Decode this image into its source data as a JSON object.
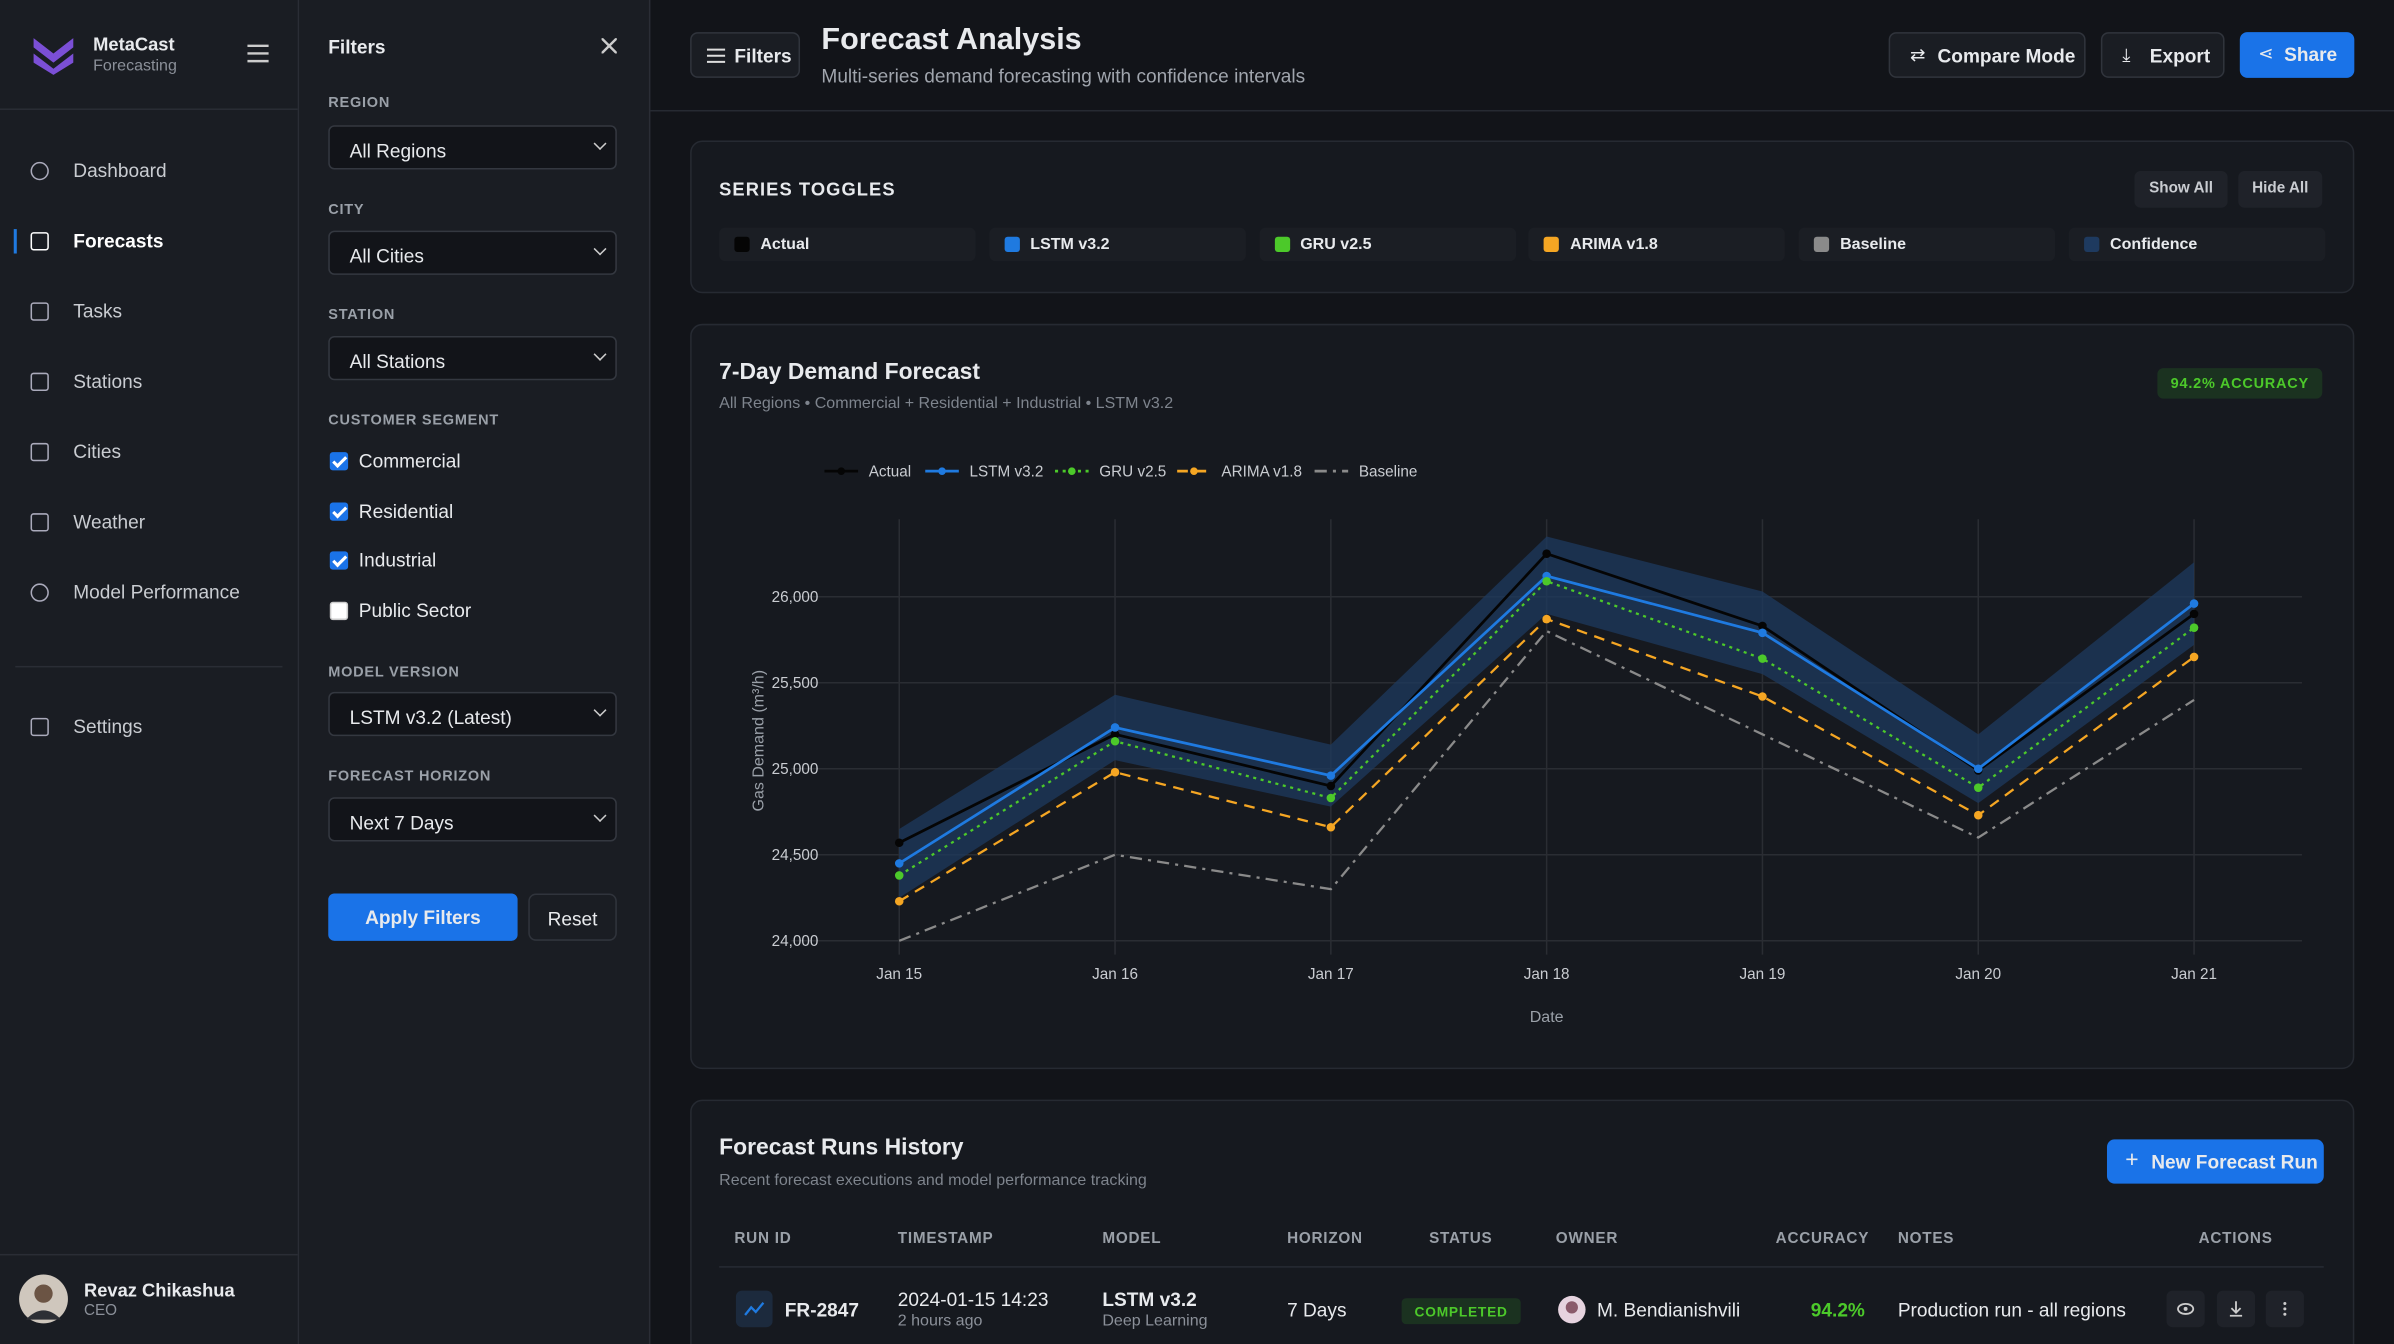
{
  "brand": {
    "name": "MetaCast",
    "tagline": "Forecasting"
  },
  "nav": [
    "Dashboard",
    "Forecasts",
    "Tasks",
    "Stations",
    "Cities",
    "Weather",
    "Model Performance",
    "Settings"
  ],
  "user": {
    "name": "Revaz Chikashua",
    "role": "CEO"
  },
  "filters": {
    "title": "Filters",
    "region": {
      "label": "REGION",
      "value": "All Regions"
    },
    "city": {
      "label": "CITY",
      "value": "All Cities"
    },
    "station": {
      "label": "STATION",
      "value": "All Stations"
    },
    "segment": {
      "label": "CUSTOMER SEGMENT",
      "options": [
        {
          "label": "Commercial",
          "checked": true
        },
        {
          "label": "Residential",
          "checked": true
        },
        {
          "label": "Industrial",
          "checked": true
        },
        {
          "label": "Public Sector",
          "checked": false
        }
      ]
    },
    "model_version": {
      "label": "MODEL VERSION",
      "value": "LSTM v3.2 (Latest)"
    },
    "horizon": {
      "label": "FORECAST HORIZON",
      "value": "Next 7 Days"
    },
    "apply": "Apply Filters",
    "reset": "Reset"
  },
  "header": {
    "filters_button": "Filters",
    "title": "Forecast Analysis",
    "subtitle": "Multi-series demand forecasting with confidence intervals",
    "compare": "Compare Mode",
    "export": "Export",
    "share": "Share"
  },
  "toggles": {
    "title": "SERIES TOGGLES",
    "show_all": "Show All",
    "hide_all": "Hide All",
    "items": [
      {
        "label": "Actual",
        "color": "#050505"
      },
      {
        "label": "LSTM v3.2",
        "color": "#1f7ae0"
      },
      {
        "label": "GRU v2.5",
        "color": "#4cc92a"
      },
      {
        "label": "ARIMA v1.8",
        "color": "#f5a623"
      },
      {
        "label": "Baseline",
        "color": "#8a8a8a"
      },
      {
        "label": "Confidence",
        "color": "#1e3a5f"
      }
    ]
  },
  "chart_data": {
    "type": "line",
    "title": "7-Day Demand Forecast",
    "subtitle": "All Regions • Commercial + Residential + Industrial • LSTM v3.2",
    "badge": "94.2% ACCURACY",
    "y_label": "Gas Demand (m³/h)",
    "x_label": "Date",
    "grid": true,
    "categories": [
      "Jan 15",
      "Jan 16",
      "Jan 17",
      "Jan 18",
      "Jan 19",
      "Jan 20",
      "Jan 21"
    ],
    "ylim": [
      23920,
      26450
    ],
    "yticks": [
      {
        "value": 24000,
        "label": "24,000"
      },
      {
        "value": 24500,
        "label": "24,500"
      },
      {
        "value": 25000,
        "label": "25,000"
      },
      {
        "value": 25500,
        "label": "25,500"
      },
      {
        "value": 26000,
        "label": "26,000"
      }
    ],
    "band": {
      "color": "#1e3a5f",
      "upper": [
        24650,
        25430,
        25140,
        26350,
        26030,
        25200,
        26200
      ],
      "lower": [
        24250,
        25050,
        24780,
        25900,
        25550,
        24800,
        25720
      ]
    },
    "series": [
      {
        "name": "Actual",
        "color": "#050505",
        "style": "solid",
        "markers": true,
        "values": [
          24570,
          25200,
          24900,
          26250,
          25830,
          24990,
          25900
        ]
      },
      {
        "name": "LSTM v3.2",
        "color": "#1f7ae0",
        "style": "solid",
        "markers": true,
        "values": [
          24450,
          25240,
          24960,
          26120,
          25790,
          25000,
          25960
        ]
      },
      {
        "name": "GRU v2.5",
        "color": "#4cc92a",
        "style": "dotted",
        "markers": true,
        "values": [
          24380,
          25160,
          24830,
          26090,
          25640,
          24890,
          25820
        ]
      },
      {
        "name": "ARIMA v1.8",
        "color": "#f5a623",
        "style": "dashed",
        "markers": true,
        "values": [
          24230,
          24980,
          24660,
          25870,
          25420,
          24730,
          25650
        ]
      },
      {
        "name": "Baseline",
        "color": "#8a8a8a",
        "style": "dashdot",
        "markers": false,
        "values": [
          24000,
          24500,
          24300,
          25800,
          25200,
          24600,
          25400
        ]
      }
    ]
  },
  "table": {
    "title": "Forecast Runs History",
    "subtitle": "Recent forecast executions and model performance tracking",
    "new_button": "New Forecast Run",
    "columns": [
      "RUN ID",
      "TIMESTAMP",
      "MODEL",
      "HORIZON",
      "STATUS",
      "OWNER",
      "ACCURACY",
      "NOTES",
      "ACTIONS"
    ],
    "rows": [
      {
        "id": "FR-2847",
        "timestamp": "2024-01-15 14:23",
        "ago": "2 hours ago",
        "model": "LSTM v3.2",
        "model_type": "Deep Learning",
        "horizon": "7 Days",
        "status": "COMPLETED",
        "owner": "M. Bendianishvili",
        "accuracy": "94.2%",
        "notes": "Production run - all regions"
      }
    ]
  }
}
